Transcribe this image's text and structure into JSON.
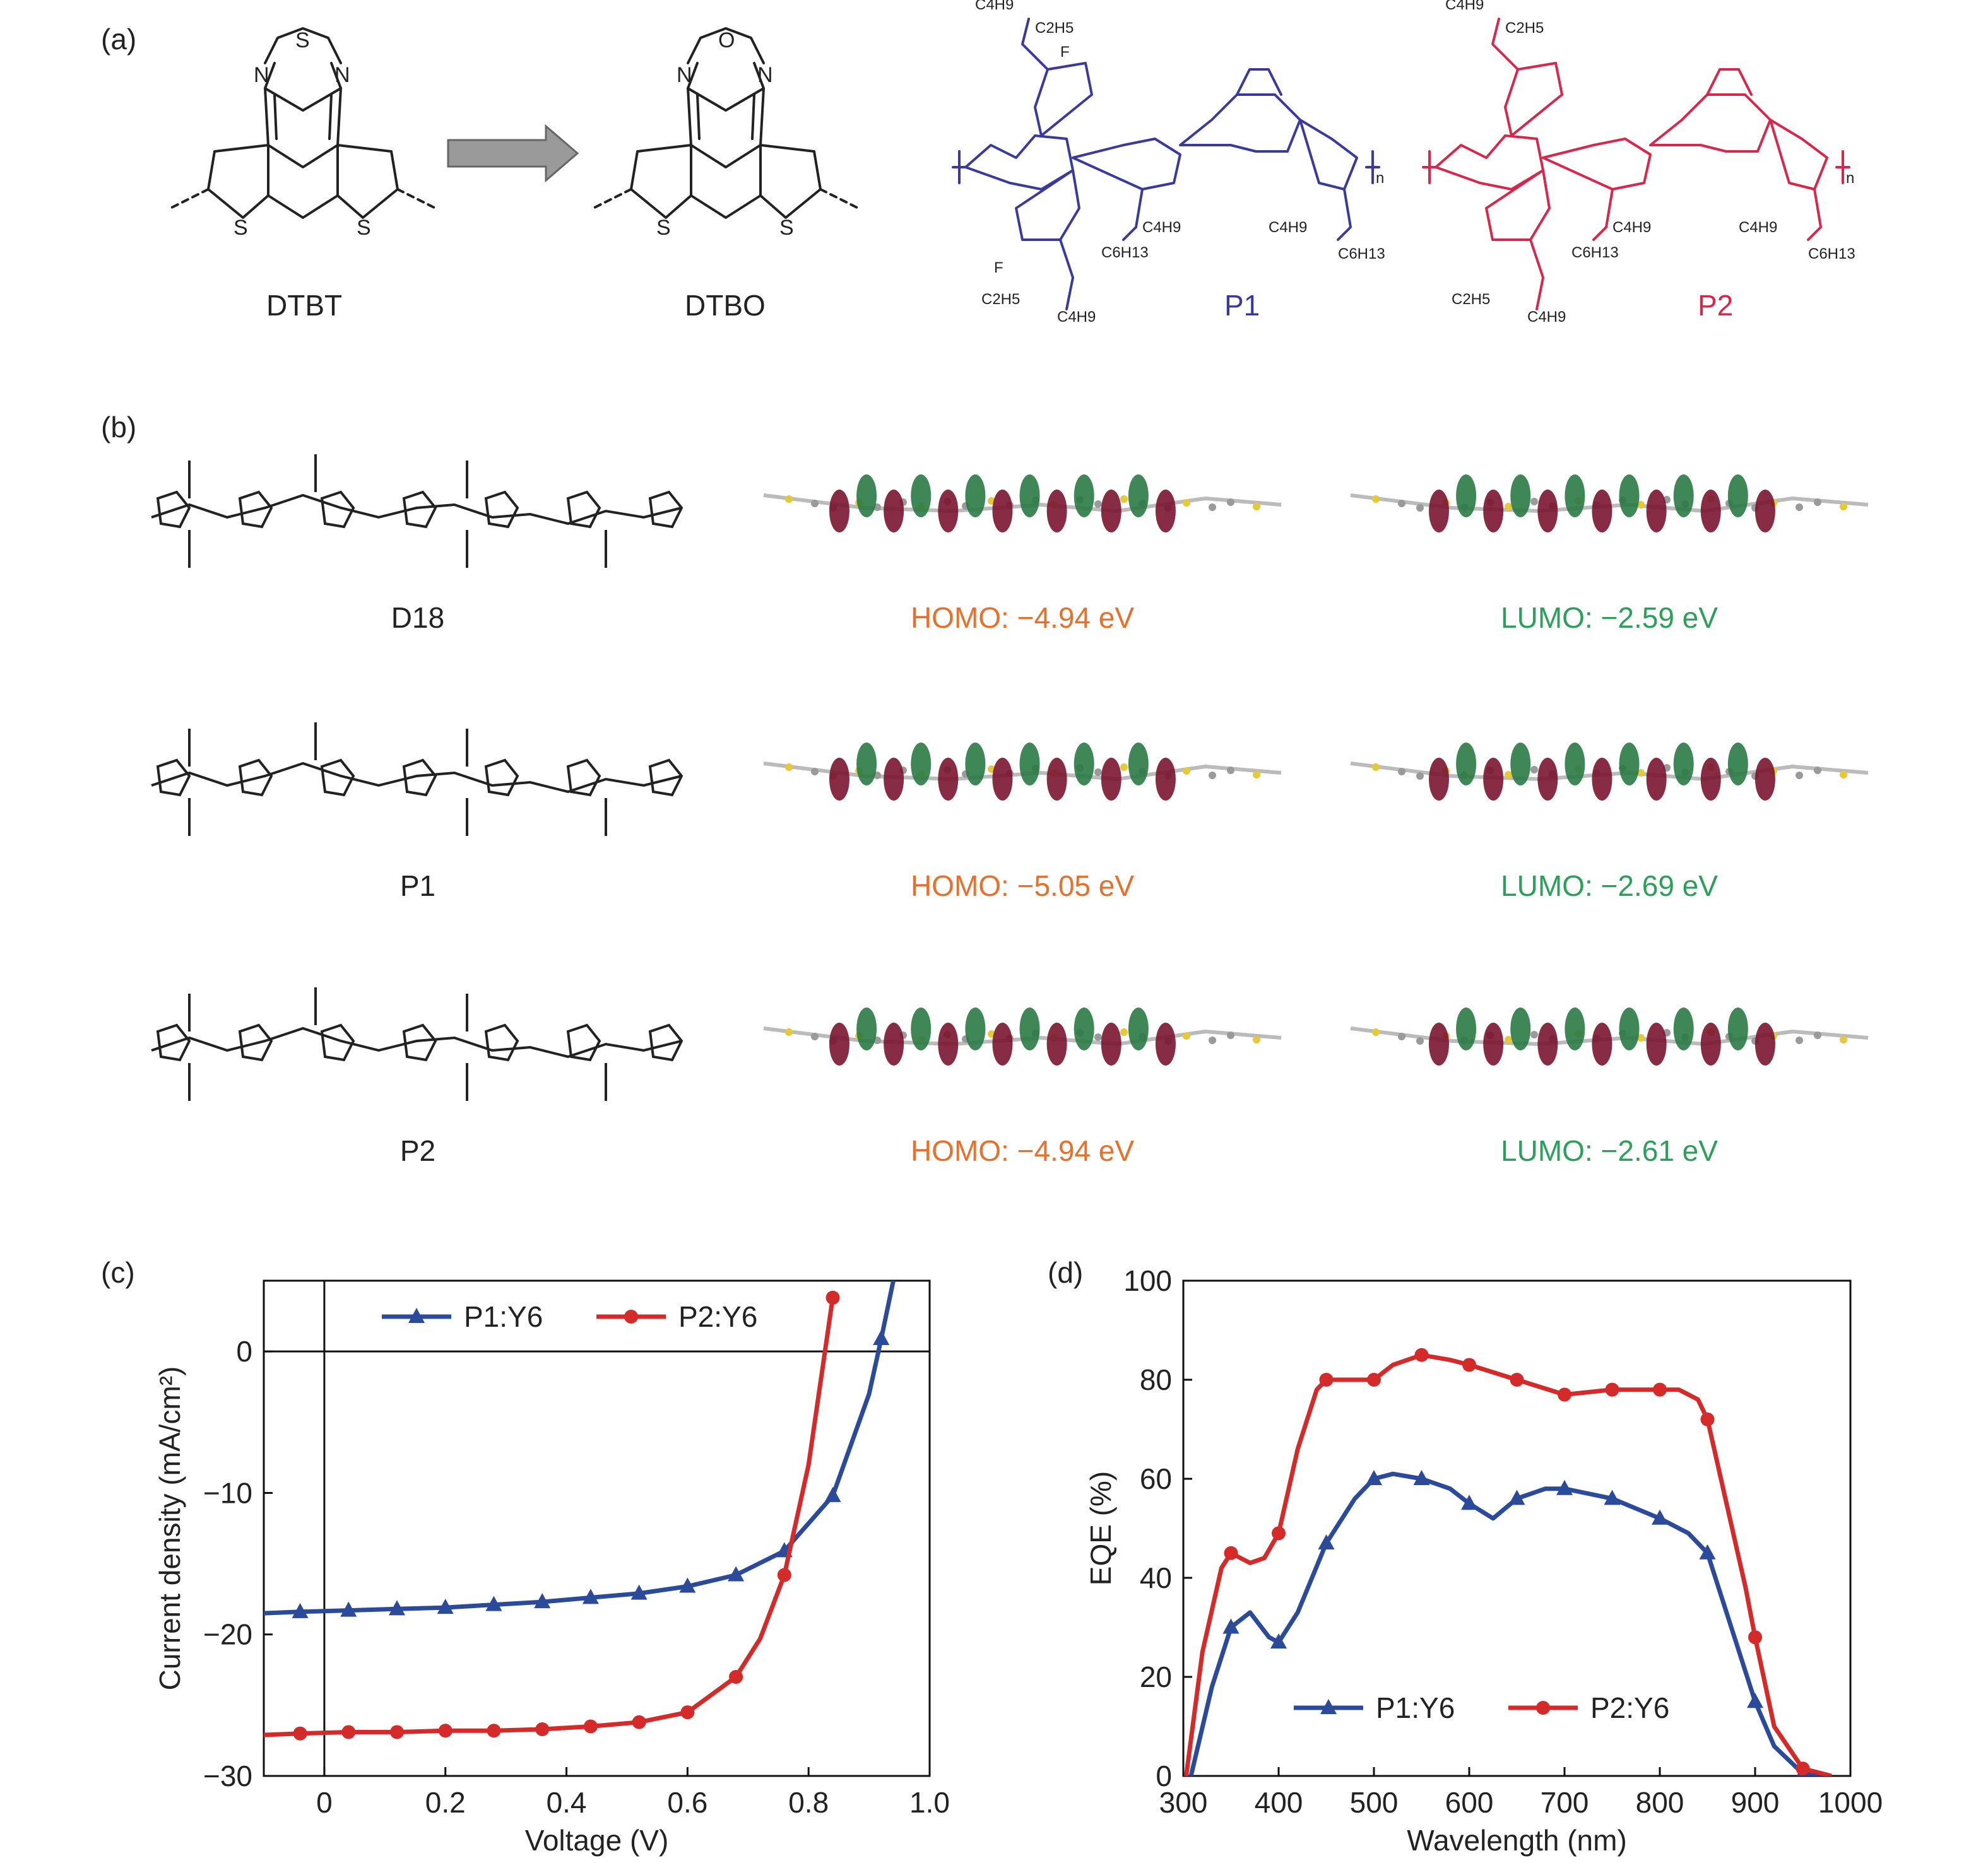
{
  "panels": {
    "a": {
      "label": "(a)",
      "molecules": [
        {
          "name": "DTBT",
          "bridge_atom": "S"
        },
        {
          "name": "DTBO",
          "bridge_atom": "O"
        }
      ],
      "polymers": [
        {
          "name": "P1",
          "color": "#3a3a9c",
          "substituents": [
            "C4H9",
            "C2H5",
            "F",
            "C4H9",
            "C6H13",
            "C4H9",
            "C6H13",
            "C2H5",
            "C4H9",
            "F",
            "n"
          ]
        },
        {
          "name": "P2",
          "color": "#d9264a",
          "substituents": [
            "C4H9",
            "C2H5",
            "C4H9",
            "C6H13",
            "C4H9",
            "C6H13",
            "C2H5",
            "C4H9",
            "n"
          ]
        }
      ]
    },
    "b": {
      "label": "(b)",
      "rows": [
        {
          "name": "D18",
          "homo": "HOMO: −4.94 eV",
          "lumo": "LUMO: −2.59 eV"
        },
        {
          "name": "P1",
          "homo": "HOMO: −5.05 eV",
          "lumo": "LUMO: −2.69 eV"
        },
        {
          "name": "P2",
          "homo": "HOMO: −4.94 eV",
          "lumo": "LUMO: −2.61 eV"
        }
      ],
      "homo_color": "#e8702a",
      "lumo_color": "#2aa05a",
      "orbital_colors": {
        "positive": "#7a1530",
        "negative": "#2a7a45"
      }
    }
  },
  "chart_data": [
    {
      "panel_label": "(c)",
      "type": "line",
      "xlabel": "Voltage (V)",
      "ylabel": "Current density (mA/cm²)",
      "xlim": [
        -0.1,
        1.0
      ],
      "ylim": [
        -30,
        5
      ],
      "xticks": [
        0,
        0.2,
        0.4,
        0.6,
        0.8,
        1.0
      ],
      "xtick_labels": [
        "0",
        "0.2",
        "0.4",
        "0.6",
        "0.8",
        "1.0"
      ],
      "yticks": [
        -30,
        -20,
        -10,
        0
      ],
      "ytick_labels": [
        "−30",
        "−20",
        "−10",
        "0"
      ],
      "legend_position": "top",
      "series": [
        {
          "name": "P1:Y6",
          "color": "#2b4a9a",
          "marker": "triangle",
          "x": [
            -0.1,
            -0.04,
            0.04,
            0.12,
            0.2,
            0.28,
            0.36,
            0.44,
            0.52,
            0.6,
            0.68,
            0.76,
            0.84,
            0.9,
            0.92,
            0.94
          ],
          "y": [
            -18.5,
            -18.4,
            -18.3,
            -18.2,
            -18.1,
            -17.9,
            -17.7,
            -17.4,
            -17.1,
            -16.6,
            -15.8,
            -14.1,
            -10.2,
            -3.0,
            0.9,
            5.0
          ],
          "marker_x": [
            -0.04,
            0.04,
            0.12,
            0.2,
            0.28,
            0.36,
            0.44,
            0.52,
            0.6,
            0.68,
            0.76,
            0.84,
            0.92
          ],
          "marker_y": [
            -18.4,
            -18.3,
            -18.2,
            -18.1,
            -17.9,
            -17.7,
            -17.4,
            -17.1,
            -16.6,
            -15.8,
            -14.1,
            -10.2,
            0.9
          ]
        },
        {
          "name": "P2:Y6",
          "color": "#d42a2a",
          "marker": "circle",
          "x": [
            -0.1,
            -0.04,
            0.04,
            0.12,
            0.2,
            0.28,
            0.36,
            0.44,
            0.52,
            0.6,
            0.68,
            0.72,
            0.76,
            0.8,
            0.84
          ],
          "y": [
            -27.1,
            -27.0,
            -26.9,
            -26.9,
            -26.8,
            -26.8,
            -26.7,
            -26.5,
            -26.2,
            -25.5,
            -23.0,
            -20.3,
            -15.8,
            -8.0,
            3.8
          ],
          "marker_x": [
            -0.04,
            0.04,
            0.12,
            0.2,
            0.28,
            0.36,
            0.44,
            0.52,
            0.6,
            0.68,
            0.76,
            0.84
          ],
          "marker_y": [
            -27.0,
            -26.9,
            -26.9,
            -26.8,
            -26.8,
            -26.7,
            -26.5,
            -26.2,
            -25.5,
            -23.0,
            -15.8,
            3.8
          ]
        }
      ]
    },
    {
      "panel_label": "(d)",
      "type": "line",
      "xlabel": "Wavelength (nm)",
      "ylabel": "EQE (%)",
      "xlim": [
        300,
        1000
      ],
      "ylim": [
        0,
        100
      ],
      "xticks": [
        300,
        400,
        500,
        600,
        700,
        800,
        900,
        1000
      ],
      "xtick_labels": [
        "300",
        "400",
        "500",
        "600",
        "700",
        "800",
        "900",
        "1000"
      ],
      "yticks": [
        0,
        20,
        40,
        60,
        80,
        100
      ],
      "ytick_labels": [
        "0",
        "20",
        "40",
        "60",
        "80",
        "100"
      ],
      "legend_position": "bottom",
      "series": [
        {
          "name": "P1:Y6",
          "color": "#2b4a9a",
          "marker": "triangle",
          "x": [
            308,
            330,
            350,
            370,
            390,
            400,
            420,
            450,
            480,
            500,
            520,
            550,
            580,
            600,
            625,
            650,
            680,
            700,
            750,
            800,
            830,
            850,
            870,
            900,
            920,
            950,
            980
          ],
          "y": [
            0,
            18,
            30,
            33,
            28,
            27,
            33,
            47,
            56,
            60,
            61,
            60,
            58,
            55,
            52,
            56,
            58,
            58,
            56,
            52,
            49,
            45,
            33,
            15,
            6,
            0.5,
            0
          ],
          "marker_x": [
            350,
            400,
            450,
            500,
            550,
            600,
            650,
            700,
            750,
            800,
            850,
            900,
            950
          ],
          "marker_y": [
            30,
            27,
            47,
            60,
            60,
            55,
            56,
            58,
            56,
            52,
            45,
            15,
            0.5
          ]
        },
        {
          "name": "P2:Y6",
          "color": "#d42a2a",
          "marker": "circle",
          "x": [
            303,
            320,
            340,
            350,
            370,
            385,
            400,
            420,
            440,
            450,
            480,
            500,
            520,
            550,
            580,
            600,
            650,
            700,
            750,
            800,
            820,
            840,
            850,
            870,
            890,
            900,
            920,
            950,
            980
          ],
          "y": [
            0,
            25,
            42,
            45,
            43,
            44,
            49,
            66,
            78,
            80,
            80,
            80,
            83,
            85,
            84,
            83,
            80,
            77,
            78,
            78,
            78,
            76,
            72,
            55,
            38,
            28,
            10,
            1.5,
            0
          ],
          "marker_x": [
            350,
            400,
            450,
            500,
            550,
            600,
            650,
            700,
            750,
            800,
            850,
            900,
            950
          ],
          "marker_y": [
            45,
            49,
            80,
            80,
            85,
            83,
            80,
            77,
            78,
            78,
            72,
            28,
            1.5
          ]
        }
      ]
    }
  ]
}
